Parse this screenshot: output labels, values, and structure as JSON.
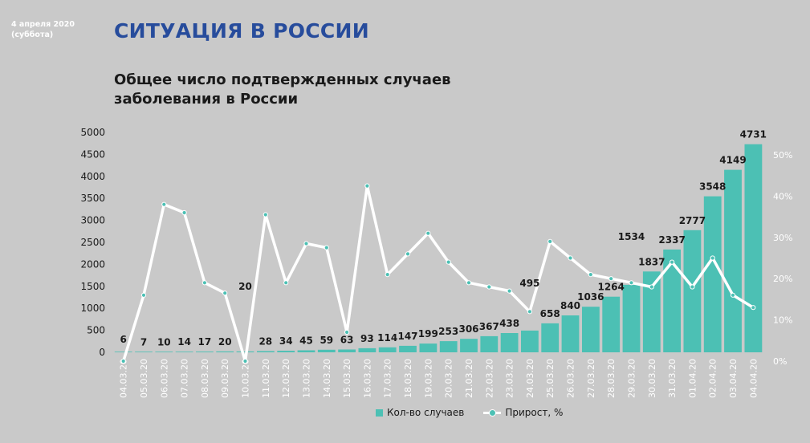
{
  "header": {
    "date_line1": "4 апреля 2020",
    "date_line2": "(суббота)",
    "title": "СИТУАЦИЯ В РОССИИ"
  },
  "colors": {
    "title": "#274c9c",
    "bars": "#4cc0b4",
    "line": "#ffffff",
    "background": "#c9c9c9"
  },
  "chart_data": {
    "type": "bar",
    "title_line1": "Общее число подтвержденных случаев",
    "title_line2": "заболевания в России",
    "categories": [
      "04.03.20",
      "05.03.20",
      "06.03.20",
      "07.03.20",
      "08.03.20",
      "09.03.20",
      "10.03.20",
      "11.03.20",
      "12.03.20",
      "13.03.20",
      "14.03.20",
      "15.03.20",
      "16.03.20",
      "17.03.20",
      "18.03.20",
      "19.03.20",
      "20.03.20",
      "21.03.20",
      "22.03.20",
      "23.03.20",
      "24.03.20",
      "25.03.20",
      "26.03.20",
      "27.03.20",
      "28.03.20",
      "29.03.20",
      "30.03.20",
      "31.03.20",
      "01.04.20",
      "02.04.20",
      "03.04.20",
      "04.04.20"
    ],
    "series": [
      {
        "name": "Кол-во случаев",
        "type": "bar",
        "axis": "left",
        "values": [
          6,
          7,
          10,
          14,
          17,
          20,
          20,
          28,
          34,
          45,
          59,
          63,
          93,
          114,
          147,
          199,
          253,
          306,
          367,
          438,
          495,
          658,
          840,
          1036,
          1264,
          1534,
          1837,
          2337,
          2777,
          3548,
          4149,
          4731
        ]
      },
      {
        "name": "Прирост, %",
        "type": "line",
        "axis": "right",
        "values": [
          0,
          16,
          38,
          36,
          19,
          16.5,
          0,
          35.5,
          19,
          28.5,
          27.5,
          7,
          42.5,
          21,
          26,
          31,
          24,
          19,
          18,
          17,
          12,
          29,
          25,
          21,
          20,
          19,
          18,
          24,
          18,
          25,
          16,
          13
        ]
      }
    ],
    "left_axis": {
      "ylim": [
        0,
        5000
      ],
      "ticks": [
        "0",
        "500",
        "1000",
        "1500",
        "2000",
        "2500",
        "3000",
        "3500",
        "4000",
        "4500",
        "5000"
      ]
    },
    "right_axis": {
      "ylim": [
        0,
        50
      ],
      "ticks": [
        "0%",
        "10%",
        "20%",
        "30%",
        "40%",
        "50%"
      ]
    },
    "legend": {
      "bar_label": "Кол-во случаев",
      "line_label": "Прирост, %",
      "position": "bottom-center"
    }
  }
}
